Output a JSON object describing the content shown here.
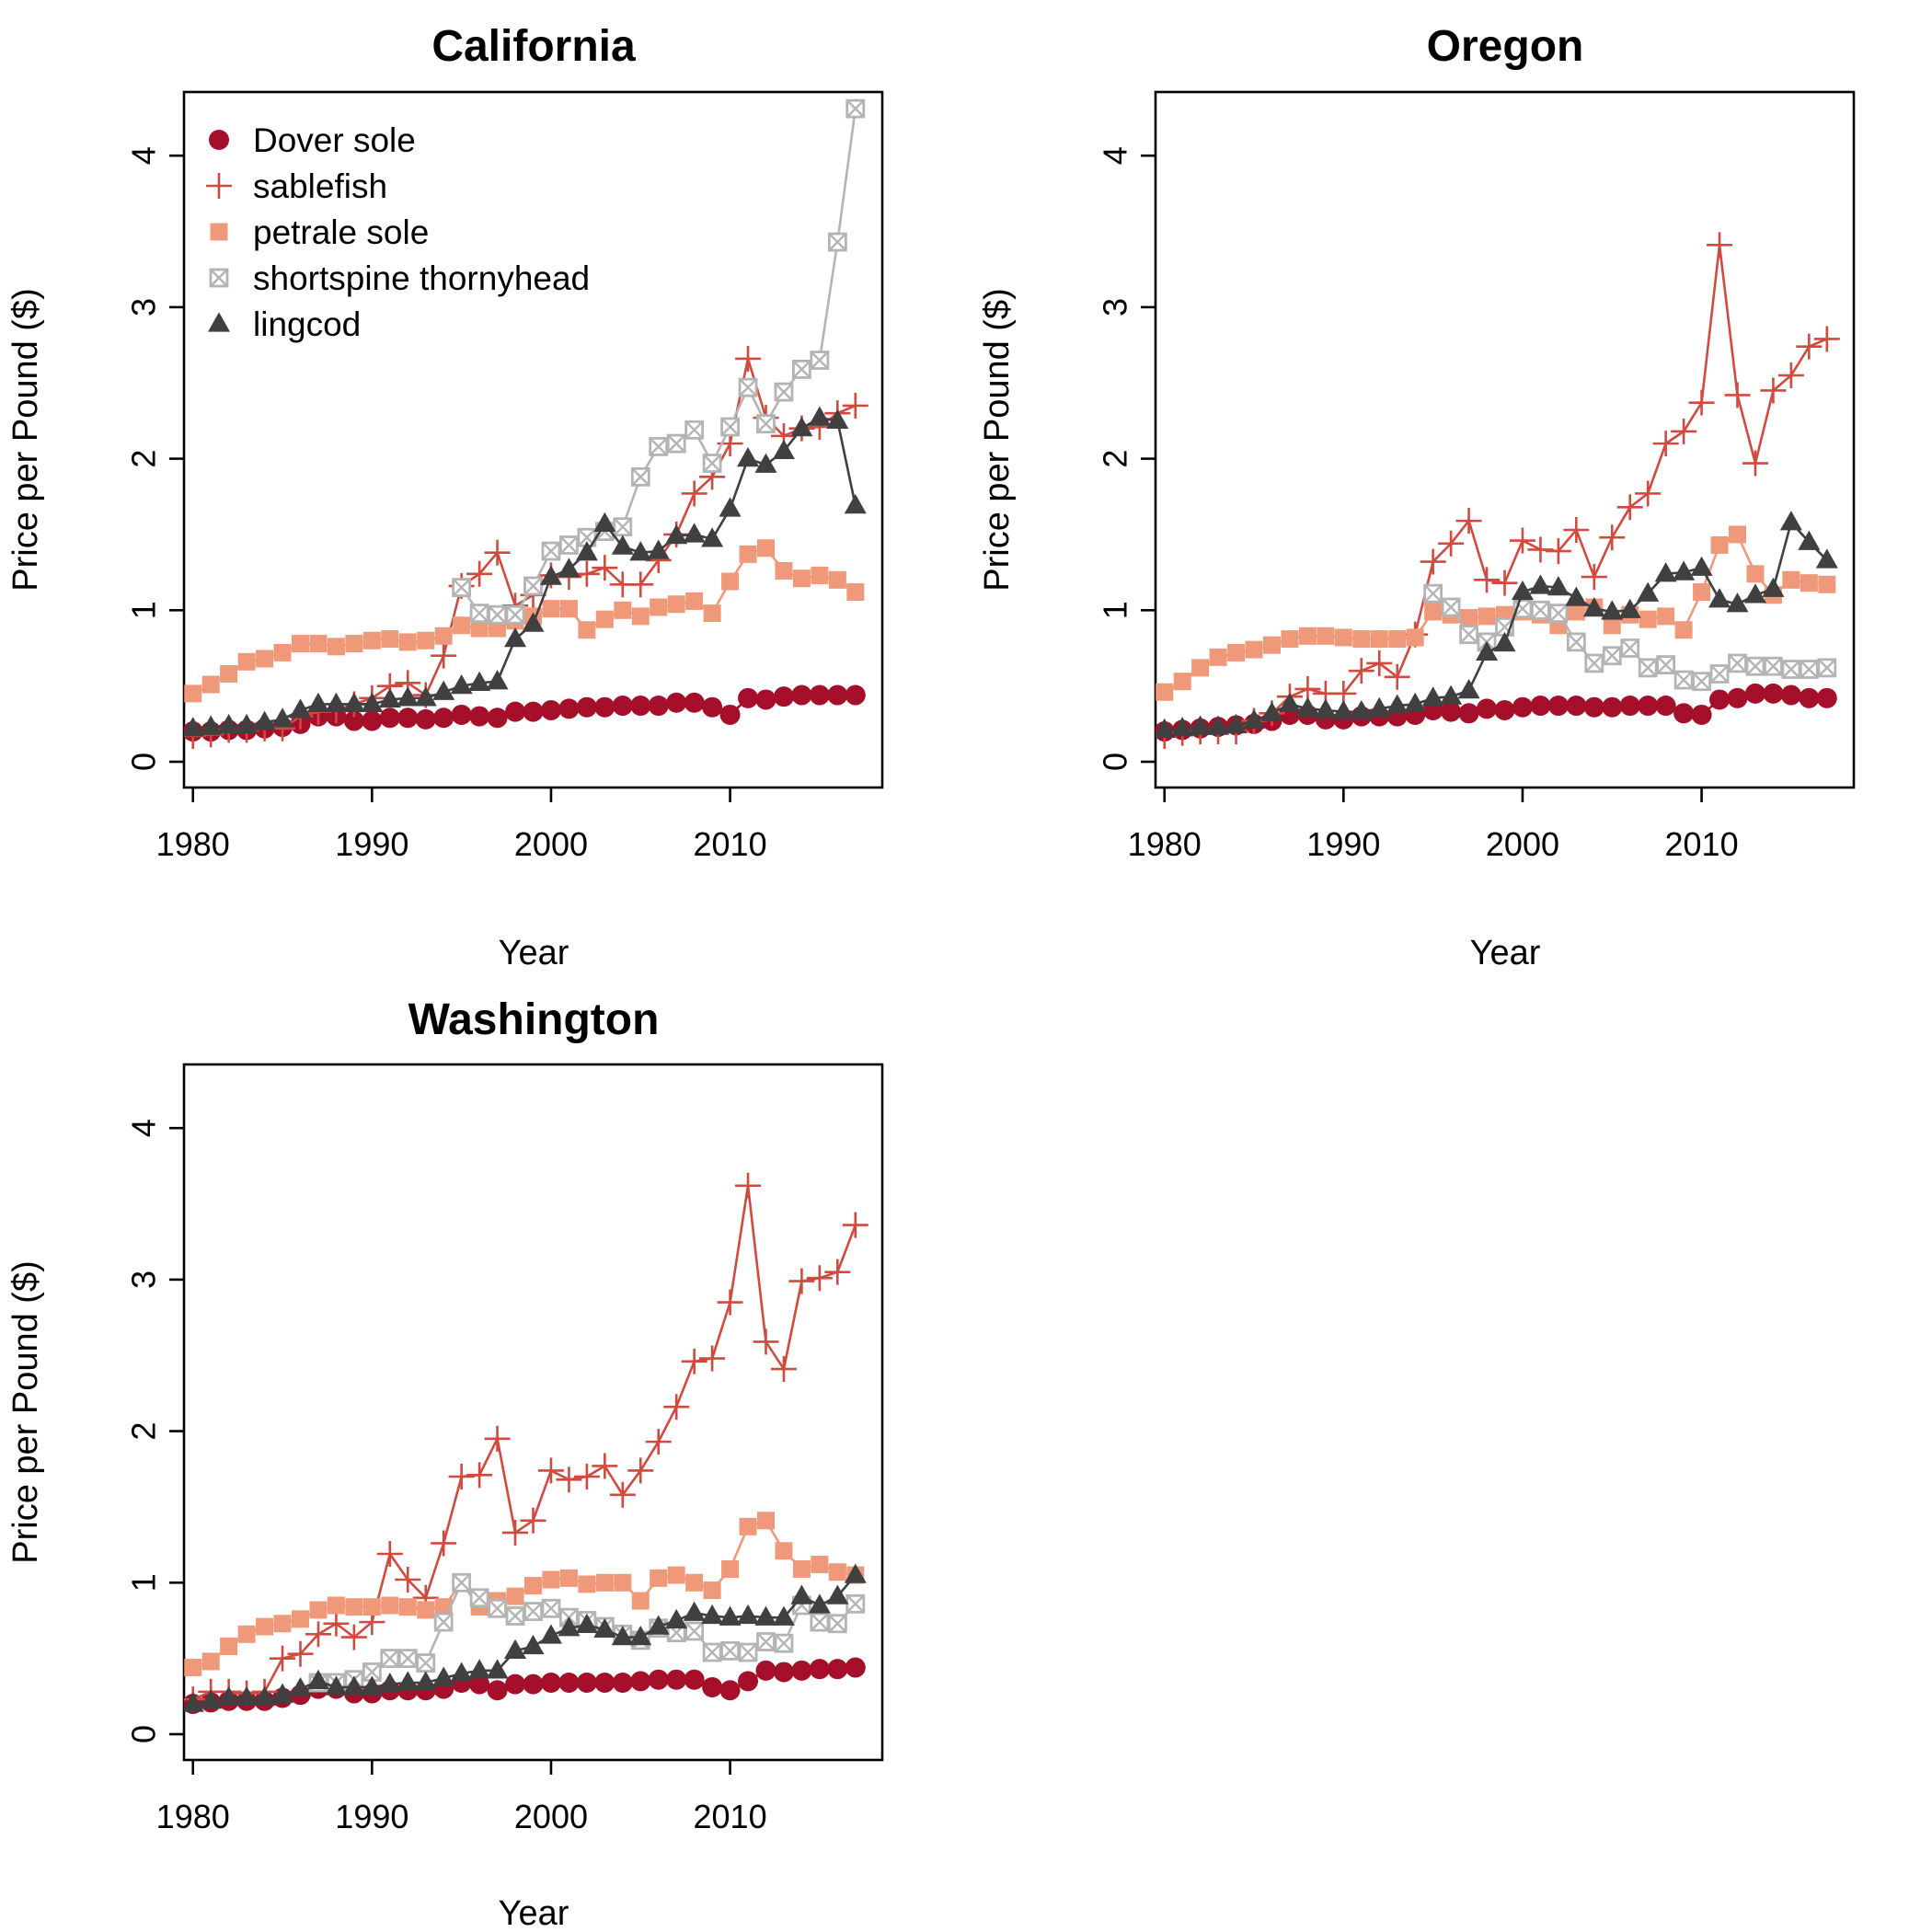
{
  "figure": {
    "ylabel": "Price per Pound ($)",
    "xlabel": "Year",
    "x_ticks": [
      1980,
      1990,
      2000,
      2010
    ],
    "y_ticks": [
      0,
      1,
      2,
      3,
      4
    ],
    "xlim": [
      1979.5,
      2018.5
    ],
    "ylim": [
      -0.17,
      4.42
    ],
    "legend_position": "top-left of California panel"
  },
  "series_styles": [
    {
      "name": "Dover sole",
      "color": "#A50F2A",
      "marker": "circle"
    },
    {
      "name": "sablefish",
      "color": "#D24A3F",
      "marker": "plus"
    },
    {
      "name": "petrale sole",
      "color": "#F0997A",
      "marker": "square"
    },
    {
      "name": "shortspine thornyhead",
      "color": "#B4B4B4",
      "marker": "boxed-x"
    },
    {
      "name": "lingcod",
      "color": "#404040",
      "marker": "triangle"
    }
  ],
  "chart_data": [
    {
      "type": "line",
      "title": "California",
      "xlabel": "Year",
      "ylabel": "Price per Pound ($)",
      "x": [
        1980,
        1981,
        1982,
        1983,
        1984,
        1985,
        1986,
        1987,
        1988,
        1989,
        1990,
        1991,
        1992,
        1993,
        1994,
        1995,
        1996,
        1997,
        1998,
        1999,
        2000,
        2001,
        2002,
        2003,
        2004,
        2005,
        2006,
        2007,
        2008,
        2009,
        2010,
        2011,
        2012,
        2013,
        2014,
        2015,
        2016,
        2017
      ],
      "series": [
        {
          "name": "Dover sole",
          "values": [
            0.2,
            0.2,
            0.21,
            0.21,
            0.22,
            0.23,
            0.25,
            0.3,
            0.3,
            0.27,
            0.27,
            0.29,
            0.29,
            0.28,
            0.29,
            0.31,
            0.3,
            0.29,
            0.33,
            0.33,
            0.34,
            0.35,
            0.36,
            0.36,
            0.37,
            0.37,
            0.37,
            0.39,
            0.39,
            0.36,
            0.31,
            0.42,
            0.41,
            0.43,
            0.44,
            0.44,
            0.44,
            0.44
          ]
        },
        {
          "name": "sablefish",
          "values": [
            0.17,
            0.18,
            0.21,
            0.21,
            0.22,
            0.22,
            0.3,
            0.33,
            0.34,
            0.38,
            0.42,
            0.5,
            0.52,
            0.44,
            0.7,
            1.16,
            1.24,
            1.38,
            1.03,
            1.1,
            1.23,
            1.22,
            1.24,
            1.28,
            1.17,
            1.17,
            1.33,
            1.5,
            1.77,
            1.88,
            2.1,
            2.66,
            2.27,
            2.15,
            2.2,
            2.21,
            2.3,
            2.35
          ]
        },
        {
          "name": "petrale sole",
          "values": [
            0.45,
            0.51,
            0.58,
            0.66,
            0.68,
            0.72,
            0.78,
            0.78,
            0.76,
            0.78,
            0.8,
            0.81,
            0.79,
            0.8,
            0.83,
            0.9,
            0.88,
            0.88,
            0.93,
            0.96,
            1.01,
            1.01,
            0.87,
            0.94,
            1.0,
            0.96,
            1.02,
            1.04,
            1.06,
            0.98,
            1.19,
            1.37,
            1.41,
            1.26,
            1.21,
            1.23,
            1.2,
            1.12
          ]
        },
        {
          "name": "shortspine thornyhead",
          "values": [
            null,
            null,
            null,
            null,
            null,
            null,
            null,
            null,
            null,
            null,
            null,
            null,
            null,
            null,
            null,
            1.15,
            0.98,
            0.97,
            0.97,
            1.16,
            1.39,
            1.43,
            1.48,
            1.52,
            1.55,
            1.88,
            2.08,
            2.1,
            2.19,
            1.97,
            2.21,
            2.47,
            2.23,
            2.44,
            2.59,
            2.65,
            3.43,
            4.31
          ]
        },
        {
          "name": "lingcod",
          "values": [
            0.22,
            0.23,
            0.24,
            0.24,
            0.26,
            0.28,
            0.34,
            0.38,
            0.38,
            0.38,
            0.38,
            0.41,
            0.42,
            0.42,
            0.46,
            0.5,
            0.52,
            0.53,
            0.81,
            0.91,
            1.22,
            1.27,
            1.38,
            1.57,
            1.42,
            1.38,
            1.39,
            1.49,
            1.5,
            1.47,
            1.67,
            2.0,
            1.96,
            2.05,
            2.2,
            2.27,
            2.25,
            1.69
          ]
        }
      ],
      "xlim": [
        1979.5,
        2018.5
      ],
      "ylim": [
        -0.17,
        4.42
      ],
      "legend": [
        "Dover sole",
        "sablefish",
        "petrale sole",
        "shortspine thornyhead",
        "lingcod"
      ],
      "grid": false
    },
    {
      "type": "line",
      "title": "Oregon",
      "xlabel": "Year",
      "ylabel": "Price per Pound ($)",
      "x": [
        1980,
        1981,
        1982,
        1983,
        1984,
        1985,
        1986,
        1987,
        1988,
        1989,
        1990,
        1991,
        1992,
        1993,
        1994,
        1995,
        1996,
        1997,
        1998,
        1999,
        2000,
        2001,
        2002,
        2003,
        2004,
        2005,
        2006,
        2007,
        2008,
        2009,
        2010,
        2011,
        2012,
        2013,
        2014,
        2015,
        2016,
        2017
      ],
      "series": [
        {
          "name": "Dover sole",
          "values": [
            0.2,
            0.21,
            0.22,
            0.23,
            0.24,
            0.25,
            0.27,
            0.31,
            0.31,
            0.28,
            0.28,
            0.3,
            0.3,
            0.3,
            0.31,
            0.34,
            0.33,
            0.32,
            0.35,
            0.34,
            0.36,
            0.37,
            0.37,
            0.37,
            0.36,
            0.36,
            0.37,
            0.37,
            0.37,
            0.32,
            0.31,
            0.41,
            0.42,
            0.45,
            0.45,
            0.44,
            0.42,
            0.42
          ]
        },
        {
          "name": "sablefish",
          "values": [
            0.17,
            0.19,
            0.2,
            0.2,
            0.2,
            0.27,
            0.32,
            0.43,
            0.48,
            0.45,
            0.45,
            0.6,
            0.65,
            0.56,
            0.84,
            1.32,
            1.44,
            1.59,
            1.2,
            1.18,
            1.46,
            1.4,
            1.39,
            1.53,
            1.22,
            1.48,
            1.68,
            1.77,
            2.1,
            2.18,
            2.37,
            3.41,
            2.42,
            1.97,
            2.45,
            2.55,
            2.74,
            2.79
          ]
        },
        {
          "name": "petrale sole",
          "values": [
            0.46,
            0.53,
            0.62,
            0.69,
            0.72,
            0.74,
            0.77,
            0.81,
            0.83,
            0.83,
            0.82,
            0.81,
            0.81,
            0.81,
            0.82,
            0.99,
            0.97,
            0.95,
            0.96,
            0.97,
            0.99,
            0.97,
            0.9,
            0.99,
            1.02,
            0.9,
            0.97,
            0.94,
            0.96,
            0.87,
            1.12,
            1.43,
            1.5,
            1.24,
            1.1,
            1.2,
            1.18,
            1.17
          ]
        },
        {
          "name": "shortspine thornyhead",
          "values": [
            null,
            null,
            null,
            null,
            null,
            null,
            null,
            null,
            null,
            null,
            null,
            null,
            null,
            null,
            null,
            1.11,
            1.02,
            0.84,
            0.79,
            0.89,
            1.01,
            1.0,
            0.98,
            0.79,
            0.65,
            0.7,
            0.75,
            0.62,
            0.64,
            0.54,
            0.53,
            0.58,
            0.65,
            0.63,
            0.63,
            0.61,
            0.61,
            0.62
          ]
        },
        {
          "name": "lingcod",
          "values": [
            0.21,
            0.22,
            0.23,
            0.23,
            0.24,
            0.27,
            0.32,
            0.38,
            0.35,
            0.34,
            0.33,
            0.33,
            0.35,
            0.37,
            0.38,
            0.42,
            0.43,
            0.47,
            0.72,
            0.78,
            1.12,
            1.16,
            1.15,
            1.08,
            1.01,
            0.99,
            1.0,
            1.11,
            1.24,
            1.25,
            1.28,
            1.07,
            1.04,
            1.1,
            1.14,
            1.58,
            1.45,
            1.33
          ]
        }
      ],
      "xlim": [
        1979.5,
        2018.5
      ],
      "ylim": [
        -0.17,
        4.42
      ],
      "grid": false
    },
    {
      "type": "line",
      "title": "Washington",
      "xlabel": "Year",
      "ylabel": "Price per Pound ($)",
      "x": [
        1980,
        1981,
        1982,
        1983,
        1984,
        1985,
        1986,
        1987,
        1988,
        1989,
        1990,
        1991,
        1992,
        1993,
        1994,
        1995,
        1996,
        1997,
        1998,
        1999,
        2000,
        2001,
        2002,
        2003,
        2004,
        2005,
        2006,
        2007,
        2008,
        2009,
        2010,
        2011,
        2012,
        2013,
        2014,
        2015,
        2016,
        2017
      ],
      "series": [
        {
          "name": "Dover sole",
          "values": [
            0.2,
            0.21,
            0.22,
            0.22,
            0.22,
            0.24,
            0.26,
            0.3,
            0.3,
            0.27,
            0.27,
            0.29,
            0.29,
            0.29,
            0.3,
            0.34,
            0.33,
            0.29,
            0.33,
            0.33,
            0.34,
            0.34,
            0.34,
            0.34,
            0.34,
            0.35,
            0.36,
            0.36,
            0.36,
            0.31,
            0.29,
            0.35,
            0.42,
            0.41,
            0.42,
            0.43,
            0.43,
            0.44
          ]
        },
        {
          "name": "sablefish",
          "values": [
            0.23,
            0.28,
            0.28,
            0.27,
            0.28,
            0.5,
            0.53,
            0.66,
            0.73,
            0.64,
            0.74,
            1.19,
            1.02,
            0.9,
            1.26,
            1.7,
            1.71,
            1.95,
            1.33,
            1.41,
            1.74,
            1.68,
            1.7,
            1.77,
            1.58,
            1.74,
            1.93,
            2.16,
            2.46,
            2.48,
            2.85,
            3.62,
            2.59,
            2.41,
            2.99,
            3.01,
            3.05,
            3.36
          ]
        },
        {
          "name": "petrale sole",
          "values": [
            0.44,
            0.48,
            0.58,
            0.66,
            0.71,
            0.73,
            0.76,
            0.82,
            0.85,
            0.84,
            0.84,
            0.85,
            0.84,
            0.82,
            0.84,
            1.0,
            0.84,
            0.88,
            0.91,
            0.98,
            1.02,
            1.03,
            0.99,
            1.0,
            1.0,
            0.88,
            1.03,
            1.05,
            1.0,
            0.95,
            1.09,
            1.37,
            1.41,
            1.21,
            1.09,
            1.12,
            1.07,
            1.05
          ]
        },
        {
          "name": "shortspine thornyhead",
          "values": [
            null,
            null,
            null,
            null,
            null,
            null,
            null,
            0.34,
            0.34,
            0.36,
            0.41,
            0.5,
            0.5,
            0.47,
            0.74,
            1.0,
            0.9,
            0.83,
            0.78,
            0.81,
            0.83,
            0.77,
            0.75,
            0.71,
            0.66,
            0.62,
            0.7,
            0.67,
            0.68,
            0.54,
            0.55,
            0.54,
            0.61,
            0.6,
            0.85,
            0.74,
            0.73,
            0.86
          ]
        },
        {
          "name": "lingcod",
          "values": [
            0.2,
            0.22,
            0.24,
            0.24,
            0.24,
            0.26,
            0.3,
            0.35,
            0.31,
            0.31,
            0.31,
            0.33,
            0.34,
            0.34,
            0.37,
            0.4,
            0.42,
            0.42,
            0.55,
            0.58,
            0.65,
            0.7,
            0.72,
            0.69,
            0.64,
            0.64,
            0.71,
            0.75,
            0.8,
            0.78,
            0.77,
            0.78,
            0.77,
            0.77,
            0.91,
            0.85,
            0.91,
            1.05
          ]
        }
      ],
      "xlim": [
        1979.5,
        2018.5
      ],
      "ylim": [
        -0.17,
        4.42
      ],
      "grid": false
    }
  ]
}
